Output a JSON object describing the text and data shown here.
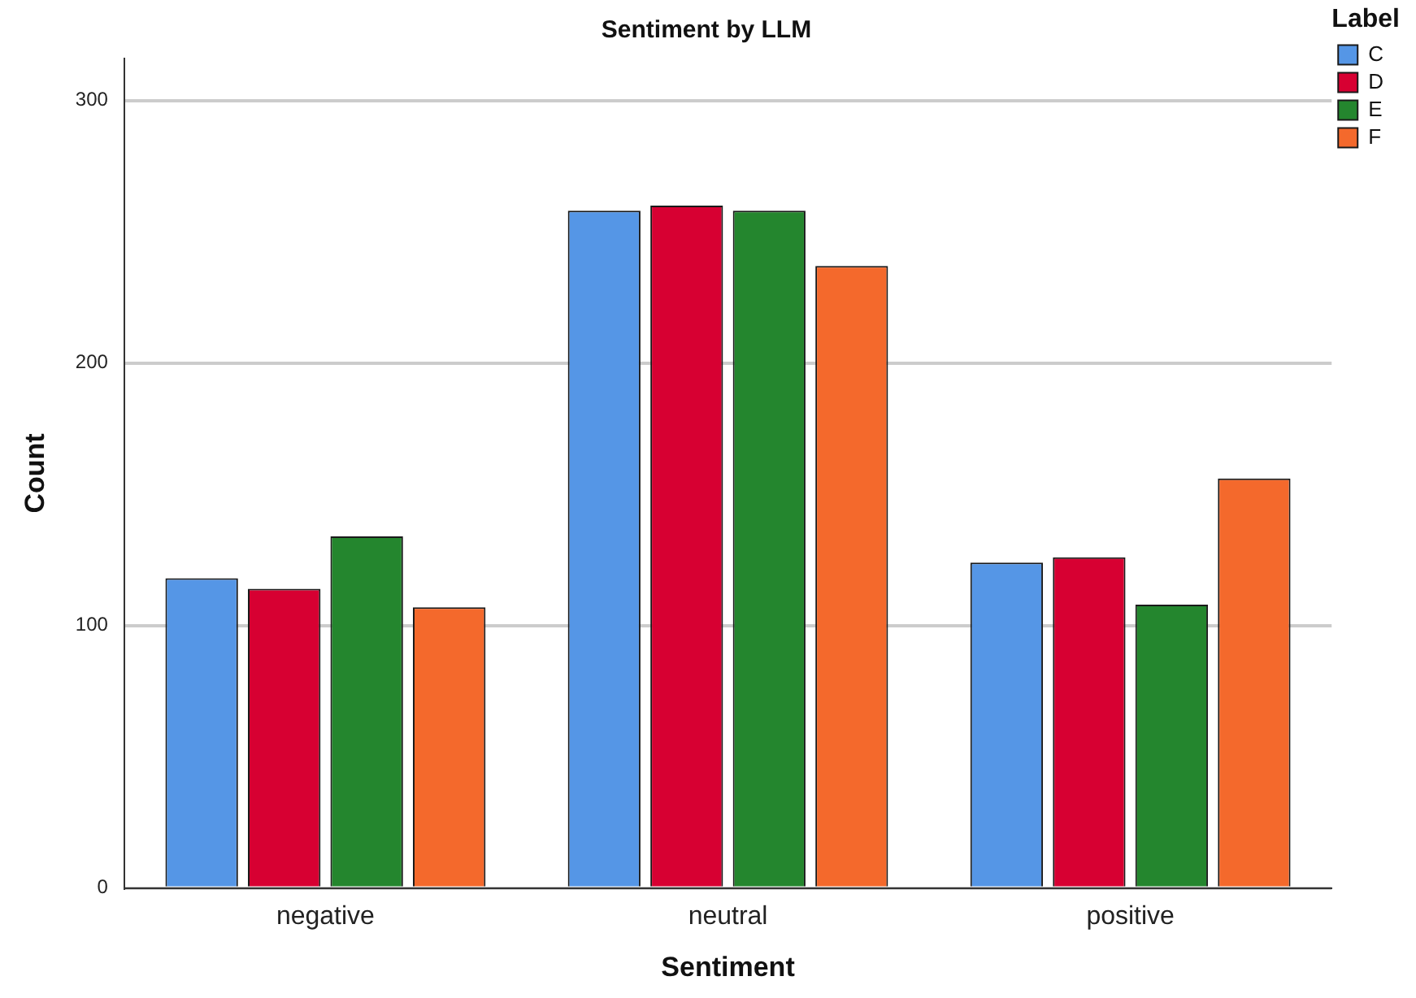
{
  "chart_data": {
    "type": "bar",
    "title": "Sentiment by LLM",
    "xlabel": "Sentiment",
    "ylabel": "Count",
    "legend_title": "Label",
    "categories": [
      "negative",
      "neutral",
      "positive"
    ],
    "series": [
      {
        "name": "C",
        "color": "#5596e6",
        "values": [
          118,
          258,
          124
        ]
      },
      {
        "name": "D",
        "color": "#d70032",
        "values": [
          114,
          260,
          126
        ]
      },
      {
        "name": "E",
        "color": "#24862e",
        "values": [
          134,
          258,
          108
        ]
      },
      {
        "name": "F",
        "color": "#f4692c",
        "values": [
          107,
          237,
          156
        ]
      }
    ],
    "ylim": [
      0,
      316
    ],
    "yticks": [
      0,
      100,
      200,
      300
    ],
    "grid": "y",
    "legend": "top right"
  }
}
